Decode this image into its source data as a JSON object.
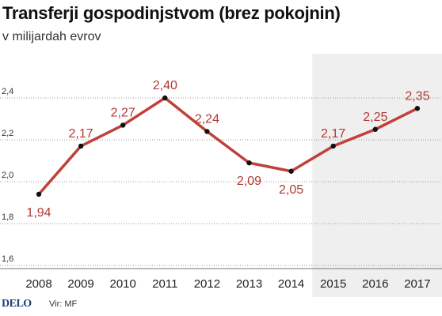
{
  "header": {
    "title": "Transferji gospodinjstvom (brez pokojnin)",
    "subtitle": "v milijardah evrov"
  },
  "footer": {
    "logo": "DELO",
    "source": "Vir: MF"
  },
  "colors": {
    "line": "#c0413a",
    "label": "#b03a32",
    "point": "#111111",
    "shade": "#efefef",
    "grid": "#9a9a9a"
  },
  "chart_data": {
    "type": "line",
    "categories": [
      "2008",
      "2009",
      "2010",
      "2011",
      "2012",
      "2013",
      "2014",
      "2015",
      "2016",
      "2017"
    ],
    "values": [
      1.94,
      2.17,
      2.27,
      2.4,
      2.24,
      2.09,
      2.05,
      2.17,
      2.25,
      2.35
    ],
    "data_labels": [
      "1,94",
      "2,17",
      "2,27",
      "2,40",
      "2,24",
      "2,09",
      "2,05",
      "2,17",
      "2,25",
      "2,35"
    ],
    "label_position": [
      "below",
      "above",
      "above",
      "above",
      "above",
      "below",
      "below",
      "above",
      "above",
      "above"
    ],
    "yticks": [
      1.6,
      1.8,
      2.0,
      2.2,
      2.4
    ],
    "ytick_labels": [
      "1,6",
      "1,8",
      "2,0",
      "2,2",
      "2,4"
    ],
    "ylim": [
      1.6,
      2.4
    ],
    "shaded_from_category": "2015",
    "grid": true,
    "title": "Transferji gospodinjstvom (brez pokojnin)",
    "subtitle": "v milijardah evrov",
    "xlabel": "",
    "ylabel": ""
  }
}
